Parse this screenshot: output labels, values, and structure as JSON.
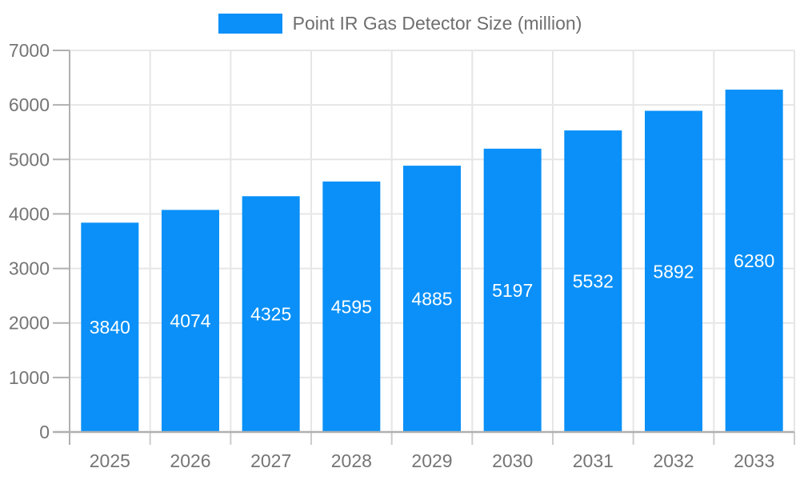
{
  "chart_data": {
    "type": "bar",
    "title": "Point IR Gas Detector Size (million)",
    "categories": [
      "2025",
      "2026",
      "2027",
      "2028",
      "2029",
      "2030",
      "2031",
      "2032",
      "2033"
    ],
    "values": [
      3840,
      4074,
      4325,
      4595,
      4885,
      5197,
      5532,
      5892,
      6280
    ],
    "xlabel": "",
    "ylabel": "",
    "ylim": [
      0,
      7000
    ],
    "ytick_step": 1000,
    "yticks": [
      0,
      1000,
      2000,
      3000,
      4000,
      5000,
      6000,
      7000
    ],
    "grid": true,
    "legend_position": "top-center",
    "bar_color": "#0a90f8",
    "value_label_color": "#ffffff",
    "axis_text_color": "#757575",
    "legend_text_color": "#6f6f6f",
    "grid_color": "#e6e6e6",
    "axis_color": "#b0b0b0",
    "minor_tick_color": "#cccccc"
  }
}
